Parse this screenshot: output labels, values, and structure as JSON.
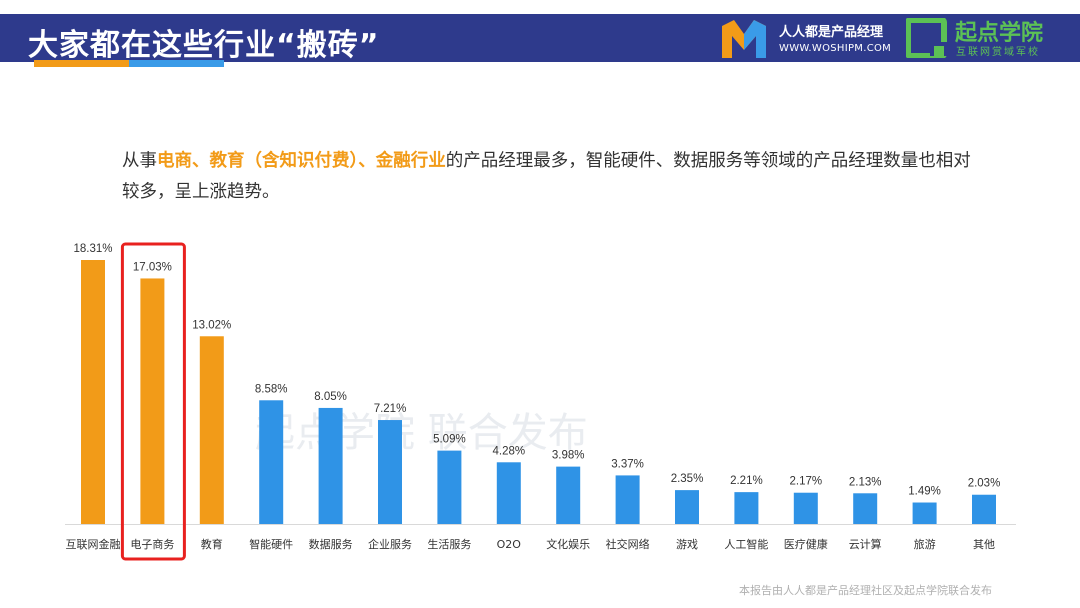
{
  "header": {
    "title": "大家都在这些行业“搬砖”",
    "brand1": {
      "name": "人人都是产品经理",
      "url": "WWW.WOSHIPM.COM"
    },
    "brand2": {
      "name": "起点学院",
      "sub": "互联网赏域军校"
    }
  },
  "description": {
    "p1": "从事",
    "h1": "电商、教育（含知识付费）、金融行业",
    "p2": "的产品经理最多，智能硬件、数据服务等领域的产品经理数量也相对较多，呈上涨趋势。"
  },
  "watermark": "起点学院   联合发布",
  "footnote": "本报告由人人都是产品经理社区及起点学院联合发布",
  "colors": {
    "orange": "#f29b18",
    "blue": "#2f93e6",
    "navy": "#2e3a8c",
    "highlight": "#e8211f"
  },
  "chart_data": {
    "type": "bar",
    "categories": [
      "互联网金融",
      "电子商务",
      "教育",
      "智能硬件",
      "数据服务",
      "企业服务",
      "生活服务",
      "O2O",
      "文化娱乐",
      "社交网络",
      "游戏",
      "人工智能",
      "医疗健康",
      "云计算",
      "旅游",
      "其他"
    ],
    "values": [
      18.31,
      17.03,
      13.02,
      8.58,
      8.05,
      7.21,
      5.09,
      4.28,
      3.98,
      3.37,
      2.35,
      2.21,
      2.17,
      2.13,
      1.49,
      2.03
    ],
    "labels": [
      "18.31%",
      "17.03%",
      "13.02%",
      "8.58%",
      "8.05%",
      "7.21%",
      "5.09%",
      "4.28%",
      "3.98%",
      "3.37%",
      "2.35%",
      "2.21%",
      "2.17%",
      "2.13%",
      "1.49%",
      "2.03%"
    ],
    "highlight_orange_count": 3,
    "highlighted_category": "电子商务",
    "ylim": [
      0,
      18.31
    ],
    "grid": false,
    "legend": "none"
  }
}
